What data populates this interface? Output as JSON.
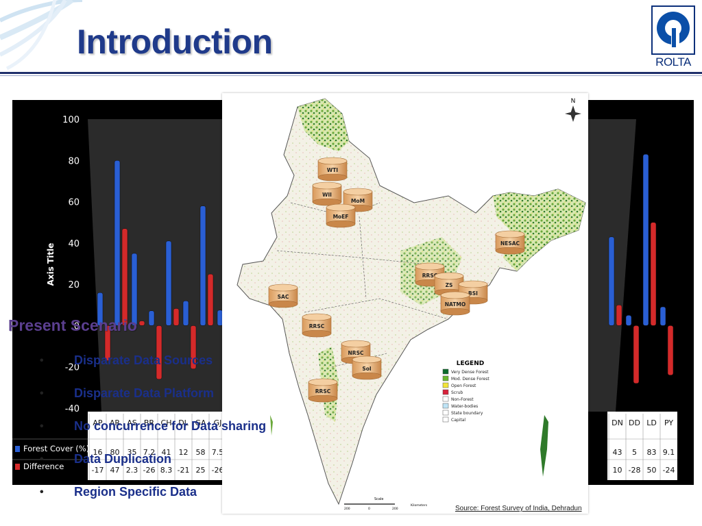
{
  "slide": {
    "title": "Introduction",
    "logo_text": "ROLTA"
  },
  "colors": {
    "title": "#1f3a8a",
    "forest_bar": "#2a5fd4",
    "difference_bar": "#d42a2a",
    "scenario": "#5b3f8f",
    "bullet_text": "#1a2f8a"
  },
  "chart_data": {
    "type": "bar",
    "ylabel": "Axis Title",
    "ylim": [
      -40,
      100
    ],
    "yticks": [
      "100",
      "80",
      "60",
      "40",
      "20",
      "0",
      "-20",
      "-40"
    ],
    "categories_left": [
      "AP",
      "AR",
      "AS",
      "BR",
      "CH",
      "DL",
      "GA",
      "GJ"
    ],
    "categories_right": [
      "DN",
      "DD",
      "LD",
      "PY"
    ],
    "series": [
      {
        "name": "Forest Cover (%)",
        "left": [
          "16",
          "80",
          "35",
          "7.2",
          "41",
          "12",
          "58",
          "7.5"
        ],
        "right": [
          "43",
          "5",
          "83",
          "9.1"
        ]
      },
      {
        "name": "Difference",
        "left": [
          "-17",
          "47",
          "2.3",
          "-26",
          "8.3",
          "-21",
          "25",
          "-26"
        ],
        "right": [
          "10",
          "-28",
          "50",
          "-24"
        ]
      }
    ],
    "grid": false,
    "legend": "table-bottom"
  },
  "map": {
    "labels": [
      "WTI",
      "WII",
      "MoM",
      "MoEF",
      "NESAC",
      "RRSC",
      "ZS",
      "BSI",
      "NATMO",
      "SAC",
      "RRSC",
      "NRSC",
      "SoI",
      "RRSC"
    ],
    "legend_title": "LEGEND",
    "legend_items": [
      {
        "label": "Very Dense Forest",
        "color": "#0b6b2b"
      },
      {
        "label": "Mod. Dense Forest",
        "color": "#6ab82e"
      },
      {
        "label": "Open Forest",
        "color": "#f2e43a"
      },
      {
        "label": "Scrub",
        "color": "#d8213a"
      },
      {
        "label": "Non-Forest",
        "color": "#ffffff"
      },
      {
        "label": "Water-bodies",
        "color": "#bfe3f5"
      },
      {
        "label": "State boundary",
        "color": "#ffffff"
      },
      {
        "label": "Capital",
        "color": "#ffffff"
      }
    ],
    "north": "N",
    "scale_label": "Scale",
    "scale_ticks": [
      "200",
      "0",
      "200"
    ],
    "scale_unit": "Kilometers",
    "source": "Source: Forest Survey of India, Dehradun"
  },
  "scenario": {
    "heading": "Present Scenario",
    "bullets": [
      "Disparate Data Sources",
      "Disparate Data Platform",
      "No concurrence  for Data sharing",
      "Data Duplication",
      "Region Specific Data"
    ]
  }
}
